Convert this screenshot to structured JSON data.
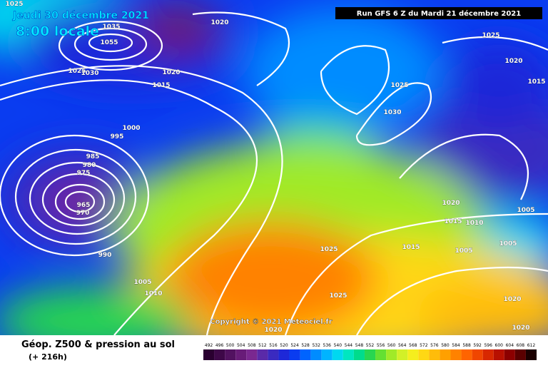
{
  "header": {
    "valid_date": "Jeudi 30 décembre 2021",
    "valid_time": "8:00 locale",
    "run": "Run GFS 6 Z du Mardi 21 décembre 2021",
    "copyright": "Copyright © 2021 Meteociel.fr"
  },
  "footer": {
    "title": "Géop. Z500 & pression au sol",
    "lead": "(+ 216h)"
  },
  "isobar_labels": [
    "1025",
    "1020",
    "1035",
    "1055",
    "1025",
    "1030",
    "1020",
    "1015",
    "1000",
    "995",
    "985",
    "980",
    "975",
    "965",
    "970",
    "990",
    "1005",
    "1010",
    "1025",
    "1030",
    "1025",
    "1020",
    "1015",
    "1020",
    "1005",
    "1015",
    "1010",
    "1015",
    "1005",
    "1005",
    "1025",
    "1025",
    "1020",
    "1020",
    "1020"
  ],
  "legend": {
    "values": [
      492,
      496,
      500,
      504,
      508,
      512,
      516,
      520,
      524,
      528,
      532,
      536,
      540,
      544,
      548,
      552,
      556,
      560,
      564,
      568,
      572,
      576,
      580,
      584,
      588,
      592,
      596,
      600,
      604,
      608,
      612
    ],
    "colors": [
      "#2a0030",
      "#3e0848",
      "#521260",
      "#681c78",
      "#7a2890",
      "#5a2aa8",
      "#3a2ac0",
      "#1e28d8",
      "#0a3cf0",
      "#0064ff",
      "#008cff",
      "#00b4ff",
      "#00d8f0",
      "#00e6c0",
      "#00dc8c",
      "#28d650",
      "#64e032",
      "#a0ea28",
      "#d2f028",
      "#f5ee1e",
      "#ffd814",
      "#ffbc0a",
      "#ffa000",
      "#ff8200",
      "#ff6400",
      "#f04600",
      "#d82800",
      "#b81000",
      "#8c0000",
      "#5a0000",
      "#1a0000"
    ]
  }
}
